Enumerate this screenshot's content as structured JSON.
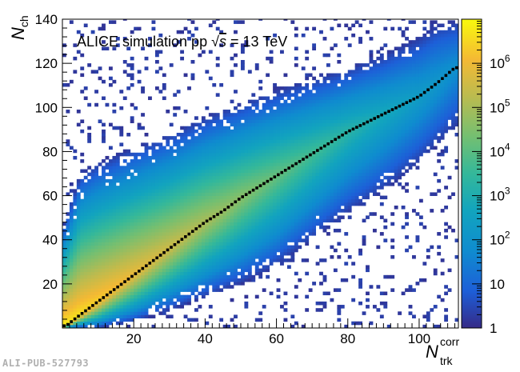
{
  "chart_data": {
    "type": "heatmap",
    "title": "",
    "annotation_prefix": "ALICE simulation pp ",
    "annotation_sqrt": "√",
    "annotation_s": "s",
    "annotation_suffix": " = 13 TeV",
    "xlabel_main": "N",
    "xlabel_sup": "corr",
    "xlabel_sub": "trk",
    "ylabel_main": "N",
    "ylabel_sub": "ch",
    "xlim": [
      0,
      111
    ],
    "ylim": [
      0,
      140
    ],
    "xticks": [
      20,
      40,
      60,
      80,
      100
    ],
    "yticks": [
      20,
      40,
      60,
      80,
      100,
      120,
      140
    ],
    "colorbar": {
      "scale": "log",
      "range": [
        1,
        10000000
      ],
      "tick_values": [
        1,
        10,
        100,
        1000,
        10000,
        100000,
        1000000
      ],
      "tick_labels": [
        {
          "base": "1",
          "exp": ""
        },
        {
          "base": "10",
          "exp": ""
        },
        {
          "base": "10",
          "exp": "2"
        },
        {
          "base": "10",
          "exp": "3"
        },
        {
          "base": "10",
          "exp": "4"
        },
        {
          "base": "10",
          "exp": "5"
        },
        {
          "base": "10",
          "exp": "6"
        }
      ]
    },
    "profile": {
      "description": "mean Nch vs Ntrk corr",
      "x": [
        1,
        5,
        10,
        15,
        20,
        25,
        30,
        35,
        40,
        45,
        50,
        55,
        60,
        65,
        70,
        75,
        80,
        85,
        90,
        95,
        100,
        105,
        110
      ],
      "y": [
        1,
        6,
        12,
        18,
        24,
        30,
        36,
        42,
        48,
        53,
        59,
        64,
        69,
        74,
        79,
        84,
        89,
        93,
        97,
        101,
        105,
        111,
        118
      ]
    },
    "band_lower": {
      "x": [
        0,
        10,
        20,
        30,
        40,
        50,
        60,
        70,
        80,
        90,
        100,
        111
      ],
      "y": [
        0,
        0,
        3,
        8,
        14,
        20,
        28,
        40,
        52,
        62,
        75,
        92
      ]
    },
    "band_upper": {
      "x": [
        0,
        5,
        10,
        20,
        30,
        40,
        50,
        60,
        70,
        80,
        90,
        100,
        105,
        111
      ],
      "y": [
        45,
        70,
        75,
        82,
        88,
        96,
        102,
        108,
        113,
        118,
        124,
        132,
        138,
        140
      ]
    }
  },
  "footer": {
    "pub_id": "ALI-PUB-527793"
  }
}
